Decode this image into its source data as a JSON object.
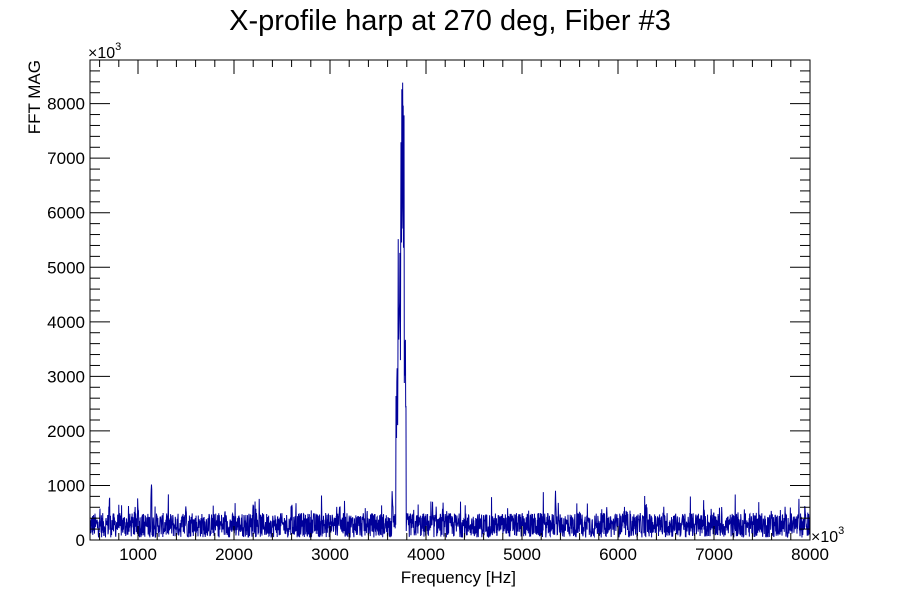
{
  "chart_data": {
    "type": "line",
    "title": "X-profile harp at 270 deg, Fiber #3",
    "xlabel": "Frequency [Hz]",
    "ylabel": "FFT MAG",
    "x_multiplier": "×10",
    "x_multiplier_exp": "3",
    "y_multiplier": "×10",
    "y_multiplier_exp": "3",
    "xlim": [
      500,
      8000
    ],
    "ylim": [
      0,
      8800
    ],
    "x_ticks": [
      1000,
      2000,
      3000,
      4000,
      5000,
      6000,
      7000,
      8000
    ],
    "y_ticks": [
      0,
      1000,
      2000,
      3000,
      4000,
      5000,
      6000,
      7000,
      8000
    ],
    "grid": false,
    "series": [
      {
        "color": "#000099",
        "baseline_level": 300,
        "noise_peaks": [
          [
            700,
            850
          ],
          [
            1000,
            900
          ],
          [
            1140,
            1050
          ],
          [
            1500,
            800
          ],
          [
            2200,
            700
          ],
          [
            2600,
            650
          ],
          [
            3100,
            700
          ],
          [
            3650,
            1050
          ],
          [
            5350,
            980
          ],
          [
            6300,
            700
          ],
          [
            7600,
            720
          ],
          [
            7950,
            650
          ]
        ],
        "resonance_peaks": [
          [
            3700,
            3200
          ],
          [
            3720,
            5600
          ],
          [
            3750,
            8400
          ],
          [
            3760,
            8100
          ],
          [
            3780,
            3700
          ]
        ]
      }
    ]
  }
}
